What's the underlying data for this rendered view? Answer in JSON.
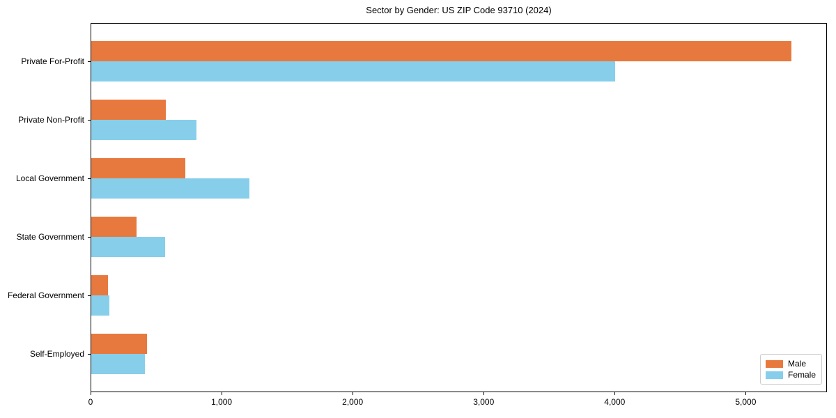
{
  "title": "Sector by Gender: US ZIP Code 93710 (2024)",
  "colors": {
    "male": "#e8793e",
    "female": "#87ceeb",
    "spine": "#000000",
    "text": "#000000",
    "legend_border": "#cccccc"
  },
  "chart_data": {
    "type": "bar",
    "orientation": "horizontal",
    "title": "Sector by Gender: US ZIP Code 93710 (2024)",
    "xlabel": "",
    "ylabel": "",
    "categories": [
      "Private For-Profit",
      "Private Non-Profit",
      "Local Government",
      "State Government",
      "Federal Government",
      "Self-Employed"
    ],
    "series": [
      {
        "name": "Male",
        "color": "#e8793e",
        "values": [
          5345,
          570,
          720,
          345,
          130,
          425
        ]
      },
      {
        "name": "Female",
        "color": "#87ceeb",
        "values": [
          4000,
          805,
          1205,
          565,
          140,
          410
        ]
      }
    ],
    "xlim": [
      0,
      5620
    ],
    "x_ticks": [
      0,
      1000,
      2000,
      3000,
      4000,
      5000
    ],
    "x_tick_labels": [
      "0",
      "1,000",
      "2,000",
      "3,000",
      "4,000",
      "5,000"
    ],
    "grid": false,
    "legend_position": "lower right"
  }
}
